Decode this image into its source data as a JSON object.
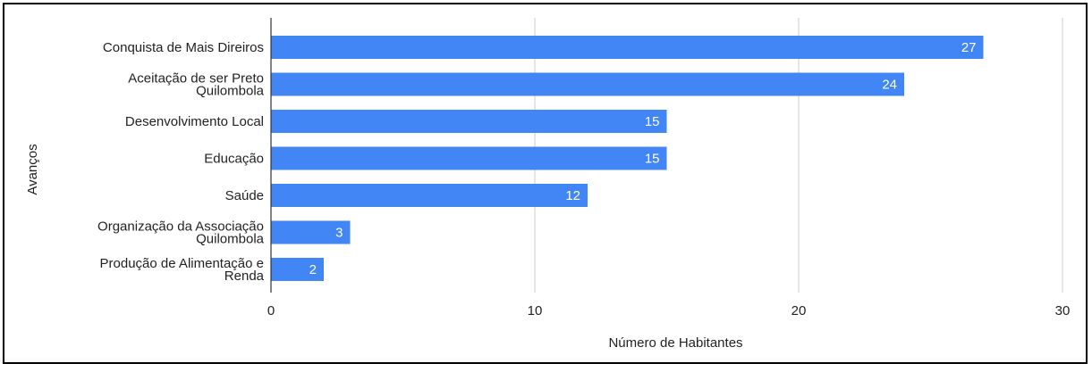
{
  "chart_data": {
    "type": "bar",
    "orientation": "horizontal",
    "categories": [
      [
        "Conquista de Mais Direiros"
      ],
      [
        "Aceitação de ser Preto",
        "Quilombola"
      ],
      [
        "Desenvolvimento Local"
      ],
      [
        "Educação"
      ],
      [
        "Saúde"
      ],
      [
        "Organização da Associação",
        "Quilombola"
      ],
      [
        "Produção de Alimentação e",
        "Renda"
      ]
    ],
    "values": [
      27,
      24,
      15,
      15,
      12,
      3,
      2
    ],
    "xlabel": "Número de Habitantes",
    "ylabel": "Avanços",
    "xlim": [
      0,
      30
    ],
    "xticks": [
      0,
      10,
      20,
      30
    ],
    "grid": true,
    "data_labels": true,
    "bar_color": "#4285f4",
    "grid_color": "#cccccc",
    "axis_color": "#333333"
  }
}
